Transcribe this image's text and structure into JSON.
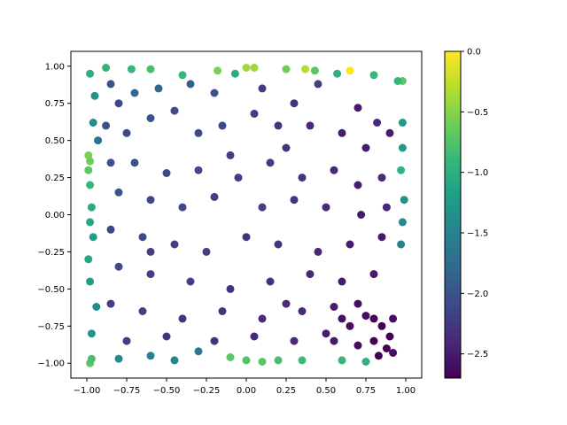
{
  "chart_data": {
    "type": "scatter",
    "title": "",
    "xlabel": "",
    "ylabel": "",
    "xlim": [
      -1.1,
      1.1
    ],
    "ylim": [
      -1.1,
      1.1
    ],
    "xticks": [
      -1.0,
      -0.75,
      -0.5,
      -0.25,
      0.0,
      0.25,
      0.5,
      0.75,
      1.0
    ],
    "xtick_labels": [
      "−1.00",
      "−0.75",
      "−0.50",
      "−0.25",
      "0.00",
      "0.25",
      "0.50",
      "0.75",
      "1.00"
    ],
    "yticks": [
      1.0,
      0.75,
      0.5,
      0.25,
      0.0,
      -0.25,
      -0.5,
      -0.75,
      -1.0
    ],
    "ytick_labels": [
      "1.00",
      "0.75",
      "0.50",
      "0.25",
      "0.00",
      "−0.25",
      "−0.50",
      "−0.75",
      "−1.00"
    ],
    "grid": false,
    "legend": "none",
    "colormap": "viridis",
    "colorbar": {
      "min": -2.7,
      "max": 0.0,
      "ticks": [
        0.0,
        -0.5,
        -1.0,
        -1.5,
        -2.0,
        -2.5
      ],
      "tick_labels": [
        "0.0",
        "−0.5",
        "−1.0",
        "−1.5",
        "−2.0",
        "−2.5"
      ]
    },
    "colormap_stops": [
      "#440154",
      "#482878",
      "#3e4989",
      "#31688e",
      "#26828e",
      "#1f9e89",
      "#35b779",
      "#6ece58",
      "#b5de2b",
      "#fde725"
    ],
    "points": [
      [
        0.65,
        0.97,
        0.0
      ],
      [
        0.37,
        0.98,
        -0.32
      ],
      [
        0.05,
        0.99,
        -0.4
      ],
      [
        0.0,
        0.99,
        -0.4
      ],
      [
        -0.18,
        0.97,
        -0.55
      ],
      [
        0.25,
        0.98,
        -0.6
      ],
      [
        0.43,
        0.97,
        -0.7
      ],
      [
        -0.6,
        0.98,
        -0.8
      ],
      [
        0.8,
        0.94,
        -0.9
      ],
      [
        -0.72,
        0.98,
        -0.9
      ],
      [
        -0.88,
        0.99,
        -0.95
      ],
      [
        0.98,
        0.9,
        -0.7
      ],
      [
        -0.98,
        0.95,
        -1.0
      ],
      [
        -0.4,
        0.94,
        -0.9
      ],
      [
        -0.07,
        0.95,
        -1.05
      ],
      [
        0.57,
        0.95,
        -1.0
      ],
      [
        0.95,
        0.9,
        -0.9
      ],
      [
        -0.99,
        0.4,
        -0.55
      ],
      [
        -0.98,
        0.36,
        -0.6
      ],
      [
        -0.99,
        0.3,
        -0.7
      ],
      [
        -0.98,
        0.2,
        -0.9
      ],
      [
        -0.97,
        0.05,
        -1.05
      ],
      [
        -0.98,
        -0.05,
        -1.1
      ],
      [
        -0.99,
        -0.3,
        -1.1
      ],
      [
        -0.98,
        -0.45,
        -1.2
      ],
      [
        -0.97,
        -0.8,
        -1.3
      ],
      [
        -0.98,
        -1.0,
        -0.7
      ],
      [
        -0.97,
        -0.97,
        -0.8
      ],
      [
        -0.1,
        -0.96,
        -0.7
      ],
      [
        0.0,
        -0.98,
        -0.75
      ],
      [
        0.1,
        -0.99,
        -0.7
      ],
      [
        0.2,
        -0.98,
        -0.8
      ],
      [
        0.35,
        -0.98,
        -0.85
      ],
      [
        0.6,
        -0.98,
        -0.9
      ],
      [
        0.75,
        -0.99,
        -1.0
      ],
      [
        0.98,
        0.62,
        -1.25
      ],
      [
        0.98,
        0.45,
        -1.25
      ],
      [
        0.97,
        0.3,
        -0.95
      ],
      [
        0.99,
        0.1,
        -1.35
      ],
      [
        0.98,
        -0.05,
        -1.4
      ],
      [
        0.97,
        -0.2,
        -1.5
      ],
      [
        -0.95,
        0.8,
        -1.3
      ],
      [
        -0.96,
        0.62,
        -1.4
      ],
      [
        -0.93,
        0.5,
        -1.7
      ],
      [
        -0.96,
        -0.15,
        -1.2
      ],
      [
        -0.94,
        -0.62,
        -1.4
      ],
      [
        -0.6,
        -0.95,
        -1.5
      ],
      [
        -0.8,
        -0.97,
        -1.4
      ],
      [
        -0.3,
        -0.92,
        -1.6
      ],
      [
        -0.45,
        -0.98,
        -1.5
      ],
      [
        -0.85,
        0.88,
        -2.0
      ],
      [
        -0.8,
        0.75,
        -2.1
      ],
      [
        -0.7,
        0.82,
        -1.8
      ],
      [
        -0.55,
        0.85,
        -1.8
      ],
      [
        -0.35,
        0.88,
        -1.9
      ],
      [
        -0.2,
        0.82,
        -2.0
      ],
      [
        0.1,
        0.85,
        -2.2
      ],
      [
        0.3,
        0.75,
        -2.3
      ],
      [
        0.45,
        0.88,
        -2.2
      ],
      [
        0.7,
        0.72,
        -2.5
      ],
      [
        0.82,
        0.62,
        -2.4
      ],
      [
        0.9,
        0.55,
        -2.5
      ],
      [
        -0.88,
        0.6,
        -2.0
      ],
      [
        -0.75,
        0.55,
        -2.1
      ],
      [
        -0.6,
        0.65,
        -2.0
      ],
      [
        -0.45,
        0.7,
        -2.1
      ],
      [
        -0.15,
        0.6,
        -2.1
      ],
      [
        0.05,
        0.68,
        -2.2
      ],
      [
        0.2,
        0.6,
        -2.3
      ],
      [
        0.4,
        0.6,
        -2.4
      ],
      [
        0.6,
        0.55,
        -2.5
      ],
      [
        0.75,
        0.45,
        -2.5
      ],
      [
        -0.85,
        0.35,
        -2.0
      ],
      [
        -0.7,
        0.35,
        -2.0
      ],
      [
        -0.5,
        0.28,
        -2.1
      ],
      [
        -0.3,
        0.3,
        -2.1
      ],
      [
        -0.05,
        0.25,
        -2.2
      ],
      [
        0.15,
        0.35,
        -2.2
      ],
      [
        0.35,
        0.25,
        -2.3
      ],
      [
        0.55,
        0.3,
        -2.4
      ],
      [
        0.7,
        0.2,
        -2.5
      ],
      [
        0.85,
        0.25,
        -2.4
      ],
      [
        -0.8,
        0.15,
        -2.0
      ],
      [
        -0.6,
        0.1,
        -2.1
      ],
      [
        -0.4,
        0.05,
        -2.1
      ],
      [
        -0.2,
        0.12,
        -2.2
      ],
      [
        0.1,
        0.05,
        -2.2
      ],
      [
        0.3,
        0.1,
        -2.3
      ],
      [
        0.5,
        0.05,
        -2.4
      ],
      [
        0.72,
        0.0,
        -2.5
      ],
      [
        0.88,
        0.05,
        -2.4
      ],
      [
        -0.85,
        -0.1,
        -2.1
      ],
      [
        -0.65,
        -0.15,
        -2.1
      ],
      [
        -0.45,
        -0.2,
        -2.2
      ],
      [
        -0.25,
        -0.25,
        -2.2
      ],
      [
        0.0,
        -0.15,
        -2.3
      ],
      [
        0.2,
        -0.2,
        -2.3
      ],
      [
        0.45,
        -0.25,
        -2.4
      ],
      [
        0.65,
        -0.2,
        -2.5
      ],
      [
        0.85,
        -0.15,
        -2.5
      ],
      [
        -0.8,
        -0.35,
        -2.1
      ],
      [
        -0.6,
        -0.4,
        -2.2
      ],
      [
        -0.35,
        -0.45,
        -2.2
      ],
      [
        -0.1,
        -0.5,
        -2.3
      ],
      [
        0.15,
        -0.45,
        -2.3
      ],
      [
        0.4,
        -0.4,
        -2.4
      ],
      [
        0.6,
        -0.45,
        -2.5
      ],
      [
        0.8,
        -0.4,
        -2.5
      ],
      [
        -0.85,
        -0.6,
        -2.2
      ],
      [
        -0.65,
        -0.65,
        -2.2
      ],
      [
        -0.4,
        -0.7,
        -2.3
      ],
      [
        -0.15,
        -0.65,
        -2.3
      ],
      [
        0.1,
        -0.7,
        -2.4
      ],
      [
        0.35,
        -0.65,
        -2.4
      ],
      [
        0.55,
        -0.62,
        -2.5
      ],
      [
        0.7,
        -0.6,
        -2.6
      ],
      [
        -0.75,
        -0.85,
        -2.2
      ],
      [
        -0.5,
        -0.82,
        -2.3
      ],
      [
        -0.2,
        -0.85,
        -2.3
      ],
      [
        0.05,
        -0.82,
        -2.4
      ],
      [
        0.3,
        -0.85,
        -2.4
      ],
      [
        0.5,
        -0.8,
        -2.5
      ],
      [
        0.65,
        -0.75,
        -2.6
      ],
      [
        0.8,
        -0.7,
        -2.7
      ],
      [
        0.85,
        -0.75,
        -2.7
      ],
      [
        0.9,
        -0.82,
        -2.7
      ],
      [
        0.88,
        -0.9,
        -2.7
      ],
      [
        0.8,
        -0.85,
        -2.7
      ],
      [
        0.92,
        -0.7,
        -2.6
      ],
      [
        0.83,
        -0.95,
        -2.7
      ],
      [
        0.7,
        -0.88,
        -2.6
      ],
      [
        0.92,
        -0.93,
        -2.6
      ],
      [
        0.75,
        -0.68,
        -2.6
      ],
      [
        0.6,
        -0.7,
        -2.6
      ],
      [
        0.55,
        -0.85,
        -2.5
      ],
      [
        -0.3,
        0.55,
        -2.1
      ],
      [
        0.25,
        0.45,
        -2.3
      ],
      [
        -0.6,
        -0.25,
        -2.2
      ],
      [
        0.25,
        -0.6,
        -2.4
      ],
      [
        -0.1,
        0.4,
        -2.2
      ]
    ]
  }
}
